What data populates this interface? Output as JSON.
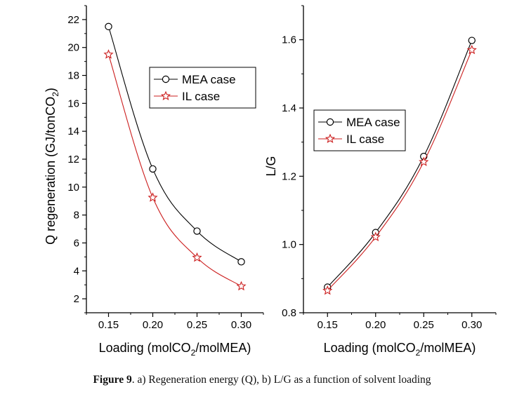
{
  "chart_data": [
    {
      "type": "line",
      "ylabel": "Q regeneration (GJ/tonCO2)",
      "xlabel": "Loading (molCO2/molMEA)",
      "x": [
        0.15,
        0.2,
        0.25,
        0.3
      ],
      "xticks": [
        "0.15",
        "0.20",
        "0.25",
        "0.30"
      ],
      "yticks": [
        "2",
        "4",
        "6",
        "8",
        "10",
        "12",
        "14",
        "16",
        "18",
        "20",
        "22"
      ],
      "ylim": [
        1,
        23
      ],
      "xlim": [
        0.125,
        0.325
      ],
      "legend_position": "top-right",
      "series": [
        {
          "name": "MEA case",
          "marker": "circle",
          "color": "#000000",
          "values": [
            21.5,
            11.3,
            6.85,
            4.65
          ]
        },
        {
          "name": "IL case",
          "marker": "star",
          "color": "#cc1f1f",
          "values": [
            19.5,
            9.25,
            4.95,
            2.9
          ]
        }
      ]
    },
    {
      "type": "line",
      "ylabel": "L/G",
      "xlabel": "Loading (molCO2/molMEA)",
      "x": [
        0.15,
        0.2,
        0.25,
        0.3
      ],
      "xticks": [
        "0.15",
        "0.20",
        "0.25",
        "0.30"
      ],
      "yticks": [
        "0.8",
        "1.0",
        "1.2",
        "1.4",
        "1.6"
      ],
      "ylim": [
        0.8,
        1.7
      ],
      "xlim": [
        0.125,
        0.325
      ],
      "legend_position": "upper-left",
      "series": [
        {
          "name": "MEA case",
          "marker": "circle",
          "color": "#000000",
          "values": [
            0.875,
            1.035,
            1.258,
            1.598
          ]
        },
        {
          "name": "IL case",
          "marker": "star",
          "color": "#cc1f1f",
          "values": [
            0.865,
            1.022,
            1.242,
            1.57
          ]
        }
      ]
    }
  ],
  "caption": {
    "label": "Figure 9",
    "text": ". a) Regeneration energy (Q), b) L/G as a function of solvent loading"
  }
}
